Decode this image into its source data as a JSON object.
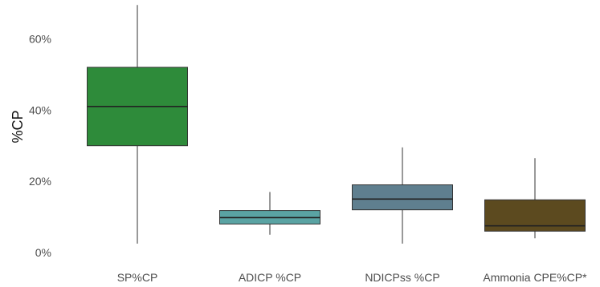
{
  "chart_data": {
    "type": "boxplot",
    "title": "",
    "xlabel": "",
    "ylabel": "%CP",
    "ylim": [
      0,
      70
    ],
    "y_ticks": [
      0,
      20,
      40,
      60
    ],
    "y_tick_labels": [
      "0%",
      "20%",
      "40%",
      "60%"
    ],
    "grid": false,
    "legend": "none",
    "categories": [
      "SP%CP",
      "ADICP %CP",
      "NDICPss %CP",
      "Ammonia CPE%CP*"
    ],
    "series": [
      {
        "category": "SP%CP",
        "color": "#2e8b3a",
        "min": 2.5,
        "q1": 30,
        "median": 41,
        "q3": 52,
        "max": 69.5
      },
      {
        "category": "ADICP %CP",
        "color": "#5aa3a3",
        "min": 5,
        "q1": 8,
        "median": 9.8,
        "q3": 11.8,
        "max": 17
      },
      {
        "category": "NDICPss %CP",
        "color": "#5f7f8f",
        "min": 2.5,
        "q1": 12,
        "median": 15,
        "q3": 19,
        "max": 29.5
      },
      {
        "category": "Ammonia CPE%CP*",
        "color": "#5c4a1f",
        "min": 4,
        "q1": 6,
        "median": 7.5,
        "q3": 14.8,
        "max": 26.5
      }
    ]
  }
}
